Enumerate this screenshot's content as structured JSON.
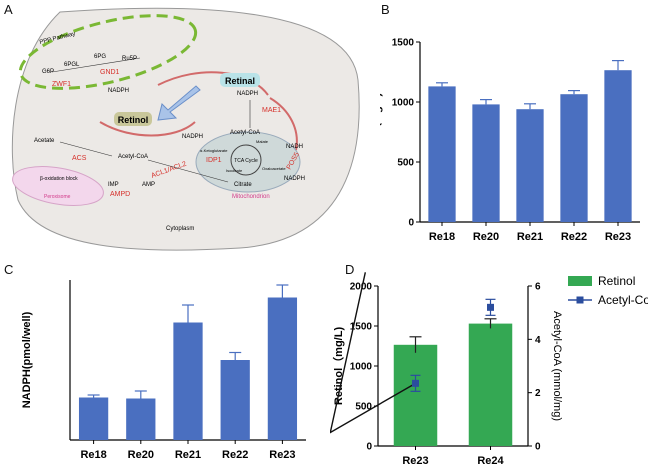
{
  "panels": {
    "a": "A",
    "b": "B",
    "c": "C",
    "d": "D"
  },
  "diagram": {
    "compartments": {
      "cytoplasm": "Cytoplasm",
      "mitochondrion": "Mitochondrion",
      "peroxisome": "Peroxisome",
      "ppp": "PPP Pathway"
    },
    "metabolites": {
      "g6p": "G6P",
      "6pgl": "6PGL",
      "6pg": "6PG",
      "ru5p": "Ru5P",
      "nadph_ppp": "NADPH",
      "retinal": "Retinal",
      "retinol": "Retinol",
      "nadph_top": "NADPH",
      "acetate": "Acetyl-CoA",
      "acetate_src": "Acetate",
      "acetylcoa_cyto": "Acetyl-CoA",
      "imp": "IMP",
      "amp": "AMP",
      "beta_ox": "β-oxidation block",
      "nadph_mito": "NADPH",
      "acetylcoa_mito": "Acetyl-CoA",
      "nadh": "NADH",
      "malate": "Malate",
      "akg": "α-Ketoglutarate",
      "tca": "TCA Cycle",
      "isocitrate": "Isocitrate",
      "oaa": "Oxaloacetate",
      "citrate": "Citrate",
      "nadph_pos5": "NADPH"
    },
    "enzymes": {
      "zwf1": "ZWF1",
      "gnd1": "GND1",
      "mae1": "MAE1",
      "acs": "ACS",
      "ampd": "AMPD",
      "acl": "ACL1/ACL2",
      "idp1": "IDP1",
      "pos5": "POS5"
    }
  },
  "colors": {
    "bar_blue": "#4a6fc0",
    "bar_green": "#34a853",
    "line_navy": "#2b4d9e",
    "enzyme_red": "#d6312b",
    "ppp_green": "#7ab834"
  },
  "chart_data": [
    {
      "type": "bar",
      "panel": "B",
      "categories": [
        "Re18",
        "Re20",
        "Re21",
        "Re22",
        "Re23"
      ],
      "values": [
        1130,
        980,
        940,
        1065,
        1265
      ],
      "errors": [
        30,
        40,
        45,
        30,
        80
      ],
      "ylabel": "Retinol（mg/L)",
      "ylim": [
        0,
        1500
      ],
      "yticks": [
        0,
        500,
        1000,
        1500
      ]
    },
    {
      "type": "bar",
      "panel": "C",
      "categories": [
        "Re18",
        "Re20",
        "Re21",
        "Re22",
        "Re23"
      ],
      "values": [
        85,
        83,
        235,
        160,
        285
      ],
      "errors": [
        5,
        15,
        35,
        15,
        25
      ],
      "ylabel": "NADPH(pmol/well)",
      "ylim": [
        0,
        320
      ],
      "yticks": []
    },
    {
      "type": "bar+line",
      "panel": "D",
      "categories": [
        "Re23",
        "Re24"
      ],
      "series": [
        {
          "name": "Retinol",
          "axis": "left",
          "kind": "bar",
          "values": [
            1265,
            1530
          ],
          "errors": [
            100,
            60
          ]
        },
        {
          "name": "Acetyl-CoA",
          "axis": "right",
          "kind": "line",
          "values": [
            2.35,
            5.2
          ],
          "errors": [
            0.3,
            0.3
          ]
        }
      ],
      "ylabel": "Retinol（mg/L)",
      "ylim": [
        0,
        2000
      ],
      "yticks": [
        0,
        500,
        1000,
        1500,
        2000
      ],
      "y2label": "Acetyl-CoA (mmol/mg)",
      "y2lim": [
        0,
        6
      ],
      "y2ticks": [
        0,
        2,
        4,
        6
      ],
      "legend": "top-right"
    }
  ]
}
